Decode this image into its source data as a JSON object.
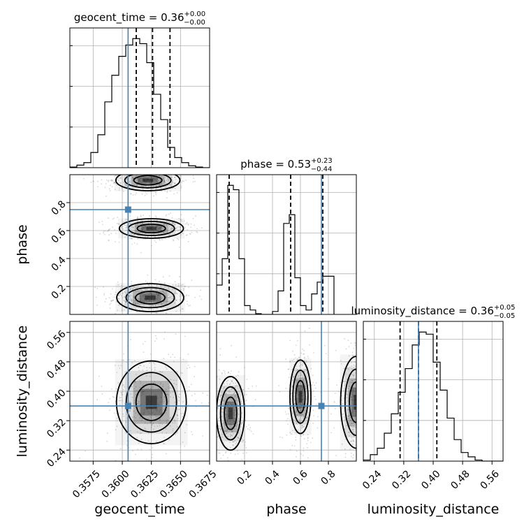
{
  "chart_data": {
    "type": "corner",
    "truth_color": "#4682b4",
    "grid": true,
    "parameters": [
      {
        "name": "geocent_time",
        "label": "geocent_time",
        "range": [
          0.3555,
          0.3675
        ],
        "ticks": [
          0.3575,
          0.36,
          0.3625,
          0.365,
          0.3675
        ],
        "tick_labels": [
          "0.3575",
          "0.3600",
          "0.3625",
          "0.3650",
          "0.3675"
        ],
        "truth": 0.3605,
        "quantiles": [
          0.3612,
          0.3626,
          0.3641
        ],
        "title": {
          "text": "geocent_time = 0.36",
          "plus": "+0.00",
          "minus": "−0.00"
        },
        "hist": {
          "edges_start": 0.3555,
          "bin_width": 0.0006,
          "counts": [
            0.5,
            2,
            4,
            12,
            26,
            52,
            73,
            88,
            97,
            102,
            98,
            83,
            58,
            38,
            16,
            8,
            4,
            1.5,
            0.5,
            0
          ]
        }
      },
      {
        "name": "phase",
        "label": "phase",
        "range": [
          0.0,
          1.0
        ],
        "ticks": [
          0.2,
          0.4,
          0.6,
          0.8
        ],
        "tick_labels": [
          "0.2",
          "0.4",
          "0.6",
          "0.8"
        ],
        "truth": 0.75,
        "quantiles": [
          0.09,
          0.53,
          0.76
        ],
        "title": {
          "text": "phase = 0.53",
          "plus": "+0.23",
          "minus": "−0.44"
        },
        "hist": {
          "edges_start": 0.0,
          "bin_width": 0.04,
          "counts": [
            20,
            38,
            88,
            85,
            38,
            6,
            3,
            0.5,
            0,
            0,
            2,
            16,
            62,
            68,
            25,
            6,
            3,
            14,
            22,
            26,
            26
          ]
        }
      },
      {
        "name": "luminosity_distance",
        "label": "luminosity_distance",
        "range": [
          0.21,
          0.59
        ],
        "ticks": [
          0.24,
          0.32,
          0.4,
          0.48,
          0.56
        ],
        "tick_labels": [
          "0.24",
          "0.32",
          "0.40",
          "0.48",
          "0.56"
        ],
        "truth": 0.36,
        "quantiles": [
          0.31,
          0.36,
          0.41
        ],
        "title": {
          "text": "luminosity_distance = 0.36",
          "plus": "+0.05",
          "minus": "−0.05"
        },
        "hist": {
          "edges_start": 0.21,
          "bin_width": 0.019,
          "counts": [
            0.5,
            3,
            6,
            13,
            22,
            32,
            43,
            54,
            60,
            59,
            46,
            33,
            20,
            10,
            4,
            2,
            0.5,
            0,
            0,
            0
          ]
        }
      }
    ],
    "pairs": [
      {
        "x": "geocent_time",
        "y": "phase",
        "modes": [
          {
            "cx": 0.3624,
            "cy": 0.12,
            "sx": 0.00115,
            "sy": 0.04
          },
          {
            "cx": 0.3625,
            "cy": 0.615,
            "sx": 0.0011,
            "sy": 0.028
          },
          {
            "cx": 0.3622,
            "cy": 0.96,
            "sx": 0.0011,
            "sy": 0.03
          }
        ]
      },
      {
        "x": "geocent_time",
        "y": "luminosity_distance",
        "modes": [
          {
            "cx": 0.3625,
            "cy": 0.37,
            "sx": 0.0012,
            "sy": 0.045
          }
        ]
      },
      {
        "x": "phase",
        "y": "luminosity_distance",
        "modes": [
          {
            "cx": 0.1,
            "cy": 0.34,
            "sx": 0.04,
            "sy": 0.04
          },
          {
            "cx": 0.6,
            "cy": 0.385,
            "sx": 0.03,
            "sy": 0.04
          },
          {
            "cx": 1.0,
            "cy": 0.37,
            "sx": 0.045,
            "sy": 0.05
          }
        ]
      }
    ]
  }
}
